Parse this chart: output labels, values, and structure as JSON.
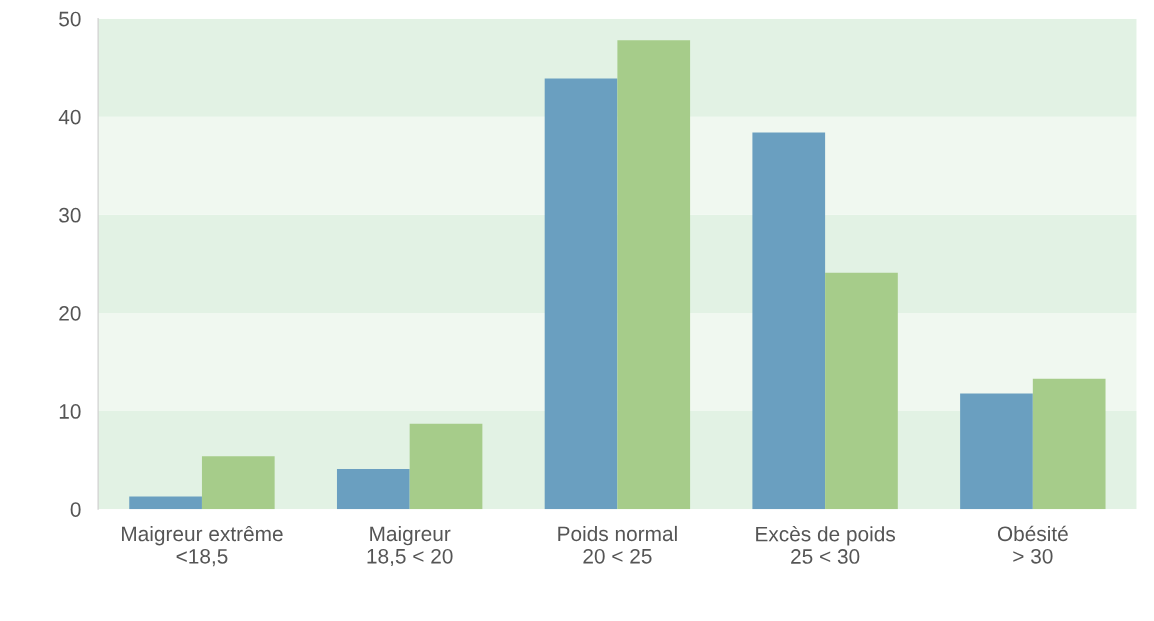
{
  "chart_data": {
    "type": "bar",
    "categories": [
      "Maigreur extrême\n<18,5",
      "Maigreur\n18,5 < 20",
      "Poids normal\n20 < 25",
      "Excès de poids\n25 < 30",
      "Obésité\n> 30"
    ],
    "series": [
      {
        "color": "#6a9fc0",
        "values": [
          1.3,
          4.1,
          43.9,
          38.4,
          11.8
        ]
      },
      {
        "color": "#a6cc8a",
        "values": [
          5.4,
          8.7,
          47.8,
          24.1,
          13.3
        ]
      }
    ],
    "ylim": [
      0,
      50
    ],
    "yticks": [
      0,
      10,
      20,
      30,
      40,
      50
    ],
    "bands": [
      {
        "axis": "y",
        "from": 0,
        "to": 10,
        "color": "#e2f2e4"
      },
      {
        "axis": "y",
        "from": 10,
        "to": 20,
        "color": "#f0f8f0"
      },
      {
        "axis": "y",
        "from": 20,
        "to": 30,
        "color": "#e2f2e4"
      },
      {
        "axis": "y",
        "from": 30,
        "to": 40,
        "color": "#f0f8f0"
      },
      {
        "axis": "y",
        "from": 40,
        "to": 50,
        "color": "#e2f2e4"
      }
    ],
    "grid": false,
    "legend": false
  }
}
